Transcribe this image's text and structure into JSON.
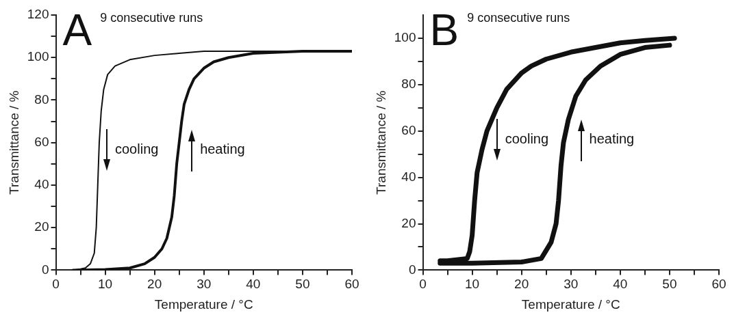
{
  "chart_data": [
    {
      "type": "line",
      "xlabel": "Temperature / °C",
      "ylabel": "Transmittance / %",
      "annotations": [
        "A",
        "9 consecutive runs",
        "cooling",
        "heating"
      ],
      "xlim": [
        0,
        60
      ],
      "xticks": [
        0,
        {
          "value": 5,
          "label": null
        },
        10,
        {
          "value": 15,
          "label": null
        },
        20,
        {
          "value": 25,
          "label": null
        },
        30,
        {
          "value": 35,
          "label": null
        },
        40,
        {
          "value": 45,
          "label": null
        },
        50,
        {
          "value": 55,
          "label": null
        },
        60
      ],
      "ylim": [
        0,
        120
      ],
      "yticks": [
        0,
        {
          "value": 10,
          "label": null
        },
        20,
        {
          "value": 30,
          "label": null
        },
        40,
        {
          "value": 50,
          "label": null
        },
        60,
        {
          "value": 70,
          "label": null
        },
        80,
        {
          "value": 90,
          "label": null
        },
        100,
        {
          "value": 110,
          "label": null
        },
        120
      ],
      "series": [
        {
          "color": "#111111",
          "x": [
            3.5,
            5,
            6,
            7,
            7.8,
            8.2,
            8.5,
            8.8,
            9.2,
            9.7,
            10.5,
            12,
            15,
            20,
            25,
            30,
            40,
            50,
            60
          ],
          "values": [
            0,
            0.5,
            1,
            3,
            8,
            20,
            40,
            60,
            75,
            85,
            92,
            96,
            99,
            101,
            102,
            103,
            103,
            103,
            103
          ]
        },
        {
          "color": "#111111",
          "x": [
            3.5,
            10,
            15,
            18,
            20,
            21.5,
            22.5,
            23.5,
            24,
            24.5,
            25,
            25.5,
            26,
            27,
            28,
            30,
            32,
            35,
            40,
            50,
            60
          ],
          "values": [
            0,
            0.3,
            1,
            3,
            6,
            10,
            15,
            25,
            35,
            50,
            60,
            70,
            78,
            85,
            90,
            95,
            98,
            100,
            102,
            103,
            103
          ]
        }
      ]
    },
    {
      "type": "line",
      "xlabel": "Temperature / °C",
      "ylabel": "Transmittance / %",
      "annotations": [
        "B",
        "9 consecutive runs",
        "cooling",
        "heating"
      ],
      "xlim": [
        0,
        60
      ],
      "xticks": [
        0,
        {
          "value": 5,
          "label": null
        },
        10,
        {
          "value": 15,
          "label": null
        },
        20,
        {
          "value": 25,
          "label": null
        },
        30,
        {
          "value": 35,
          "label": null
        },
        40,
        {
          "value": 45,
          "label": null
        },
        50,
        {
          "value": 55,
          "label": null
        },
        60
      ],
      "ylim": [
        0,
        110
      ],
      "yticks": [
        0,
        {
          "value": 10,
          "label": null
        },
        20,
        {
          "value": 30,
          "label": null
        },
        40,
        {
          "value": 50,
          "label": null
        },
        60,
        {
          "value": 70,
          "label": null
        },
        80,
        {
          "value": 90,
          "label": null
        },
        100
      ],
      "series": [
        {
          "color": "#111111",
          "x": [
            51,
            45,
            40,
            35,
            30,
            25,
            22,
            20,
            17,
            15,
            13,
            12,
            11,
            10.5,
            10,
            9.5,
            9,
            5,
            3.5
          ],
          "values": [
            100,
            99,
            98,
            96,
            94,
            91,
            88,
            85,
            78,
            70,
            60,
            52,
            42,
            30,
            15,
            8,
            5,
            4,
            4
          ]
        },
        {
          "color": "#111111",
          "x": [
            3.5,
            10,
            20,
            24,
            26,
            27,
            27.5,
            28,
            28.5,
            29.5,
            31,
            33,
            36,
            40,
            45,
            50
          ],
          "values": [
            3,
            3,
            3.5,
            5,
            12,
            20,
            30,
            45,
            55,
            65,
            75,
            82,
            88,
            93,
            96,
            97
          ]
        }
      ]
    }
  ]
}
